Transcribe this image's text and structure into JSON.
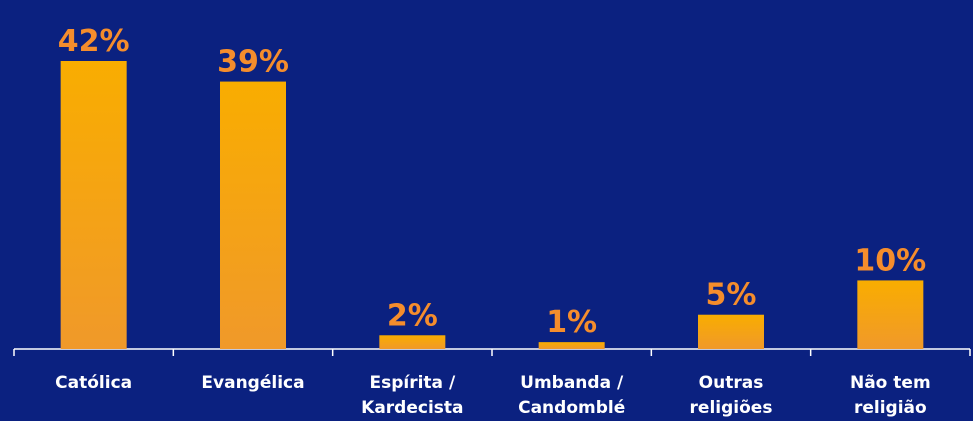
{
  "chart_data": {
    "type": "bar",
    "categories": [
      [
        "Católica"
      ],
      [
        "Evangélica"
      ],
      [
        "Espírita /",
        "Kardecista"
      ],
      [
        "Umbanda /",
        "Candomblé"
      ],
      [
        "Outras",
        "religiões"
      ],
      [
        "Não tem",
        "religião"
      ]
    ],
    "values": [
      42,
      39,
      2,
      1,
      5,
      10
    ],
    "value_labels": [
      "42%",
      "39%",
      "2%",
      "1%",
      "5%",
      "10%"
    ],
    "value_unit": "%",
    "title": "",
    "xlabel": "",
    "ylabel": "",
    "ylim": [
      0,
      42
    ],
    "grid": false,
    "legend": "none",
    "colors": {
      "background": "#0b2180",
      "bar_top": "#f9ad00",
      "bar_bottom": "#f0992a",
      "value_label": "#f58d2c",
      "category_label": "#ffffff",
      "axis": "#ffffff"
    }
  }
}
